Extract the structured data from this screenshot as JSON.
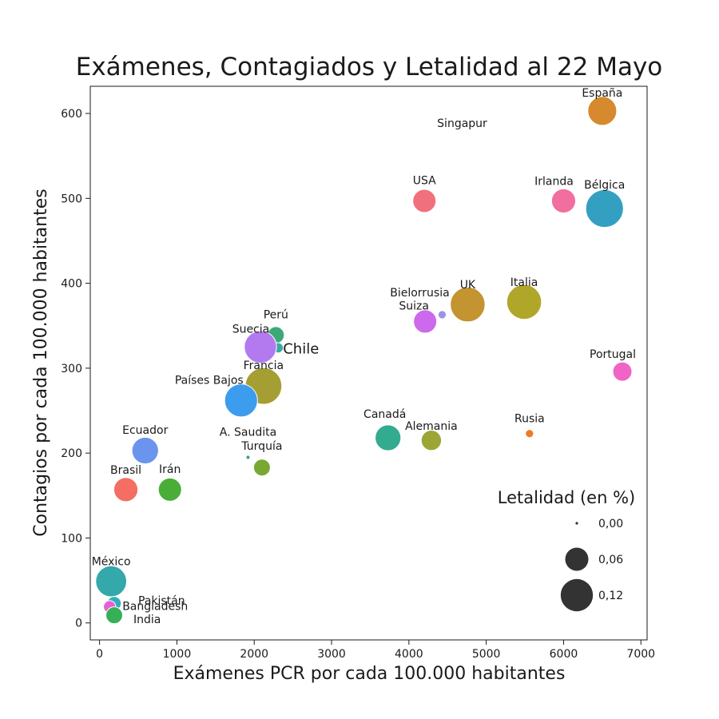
{
  "chart_data": {
    "type": "scatter",
    "title": "Exámenes, Contagiados y Letalidad al 22 Mayo",
    "xlabel": "Exámenes PCR por cada 100.000 habitantes",
    "ylabel": "Contagios por cada 100.000 habitantes",
    "xlim": [
      -120,
      7080
    ],
    "ylim": [
      -20,
      632
    ],
    "xticks": [
      0,
      1000,
      2000,
      3000,
      4000,
      5000,
      6000,
      7000
    ],
    "xtick_labels": [
      "0",
      "1000",
      "2000",
      "3000",
      "4000",
      "5000",
      "6000",
      "7000"
    ],
    "yticks": [
      0,
      100,
      200,
      300,
      400,
      500,
      600
    ],
    "ytick_labels": [
      "0",
      "100",
      "200",
      "300",
      "400",
      "500",
      "600"
    ],
    "grid": false,
    "legend": {
      "title": "Letalidad (en %)",
      "placement": "lower-right",
      "entries": [
        {
          "label": "0,00",
          "letalidad": 0.0
        },
        {
          "label": "0,06",
          "letalidad": 0.06
        },
        {
          "label": "0,12",
          "letalidad": 0.12
        }
      ]
    },
    "series": [
      {
        "name": "España",
        "x": 6500,
        "y": 603,
        "letalidad": 0.095,
        "color": "#d6892d"
      },
      {
        "name": "Singapur",
        "x": 4420,
        "y": 535,
        "letalidad": 0.0,
        "color": "#a8a8a8"
      },
      {
        "name": "USA",
        "x": 4200,
        "y": 497,
        "letalidad": 0.06,
        "color": "#f0717d"
      },
      {
        "name": "Irlanda",
        "x": 6000,
        "y": 497,
        "letalidad": 0.065,
        "color": "#f26e9e"
      },
      {
        "name": "Bélgica",
        "x": 6530,
        "y": 488,
        "letalidad": 0.165,
        "color": "#34a0c1"
      },
      {
        "name": "Bielorrusia",
        "x": 4430,
        "y": 363,
        "letalidad": 0.006,
        "color": "#9c93e8"
      },
      {
        "name": "UK",
        "x": 4760,
        "y": 375,
        "letalidad": 0.14,
        "color": "#c39430"
      },
      {
        "name": "Italia",
        "x": 5490,
        "y": 378,
        "letalidad": 0.14,
        "color": "#b0a72a"
      },
      {
        "name": "Suiza",
        "x": 4210,
        "y": 355,
        "letalidad": 0.06,
        "color": "#cc69ec"
      },
      {
        "name": "Perú",
        "x": 2280,
        "y": 339,
        "letalidad": 0.03,
        "color": "#3aaa77"
      },
      {
        "name": "Chile",
        "x": 2310,
        "y": 324,
        "letalidad": 0.01,
        "color": "#3aa8a6"
      },
      {
        "name": "Suecia",
        "x": 2080,
        "y": 325,
        "letalidad": 0.12,
        "color": "#b37af0"
      },
      {
        "name": "Francia",
        "x": 2120,
        "y": 279,
        "letalidad": 0.155,
        "color": "#a59e32"
      },
      {
        "name": "Países Bajos",
        "x": 1830,
        "y": 262,
        "letalidad": 0.125,
        "color": "#3c9def"
      },
      {
        "name": "Portugal",
        "x": 6760,
        "y": 296,
        "letalidad": 0.04,
        "color": "#ef64c5"
      },
      {
        "name": "Canadá",
        "x": 3730,
        "y": 218,
        "letalidad": 0.075,
        "color": "#33ab8e"
      },
      {
        "name": "Alemania",
        "x": 4290,
        "y": 215,
        "letalidad": 0.045,
        "color": "#9ca635"
      },
      {
        "name": "Rusia",
        "x": 5560,
        "y": 223,
        "letalidad": 0.006,
        "color": "#ed7a2c"
      },
      {
        "name": "Ecuador",
        "x": 590,
        "y": 203,
        "letalidad": 0.08,
        "color": "#6b94ee"
      },
      {
        "name": "A. Saudita",
        "x": 1920,
        "y": 195,
        "letalidad": 0.001,
        "color": "#3aa38e"
      },
      {
        "name": "Turquía",
        "x": 2100,
        "y": 183,
        "letalidad": 0.03,
        "color": "#79a734"
      },
      {
        "name": "Brasil",
        "x": 340,
        "y": 157,
        "letalidad": 0.065,
        "color": "#f46e63"
      },
      {
        "name": "Irán",
        "x": 910,
        "y": 157,
        "letalidad": 0.06,
        "color": "#4aad37"
      },
      {
        "name": "México",
        "x": 150,
        "y": 49,
        "letalidad": 0.11,
        "color": "#34a8aa"
      },
      {
        "name": "Pakistán",
        "x": 190,
        "y": 23,
        "letalidad": 0.02,
        "color": "#33aebf"
      },
      {
        "name": "Bangladesh",
        "x": 130,
        "y": 19,
        "letalidad": 0.015,
        "color": "#e75fd4"
      },
      {
        "name": "India",
        "x": 190,
        "y": 9,
        "letalidad": 0.03,
        "color": "#35b057"
      }
    ]
  }
}
